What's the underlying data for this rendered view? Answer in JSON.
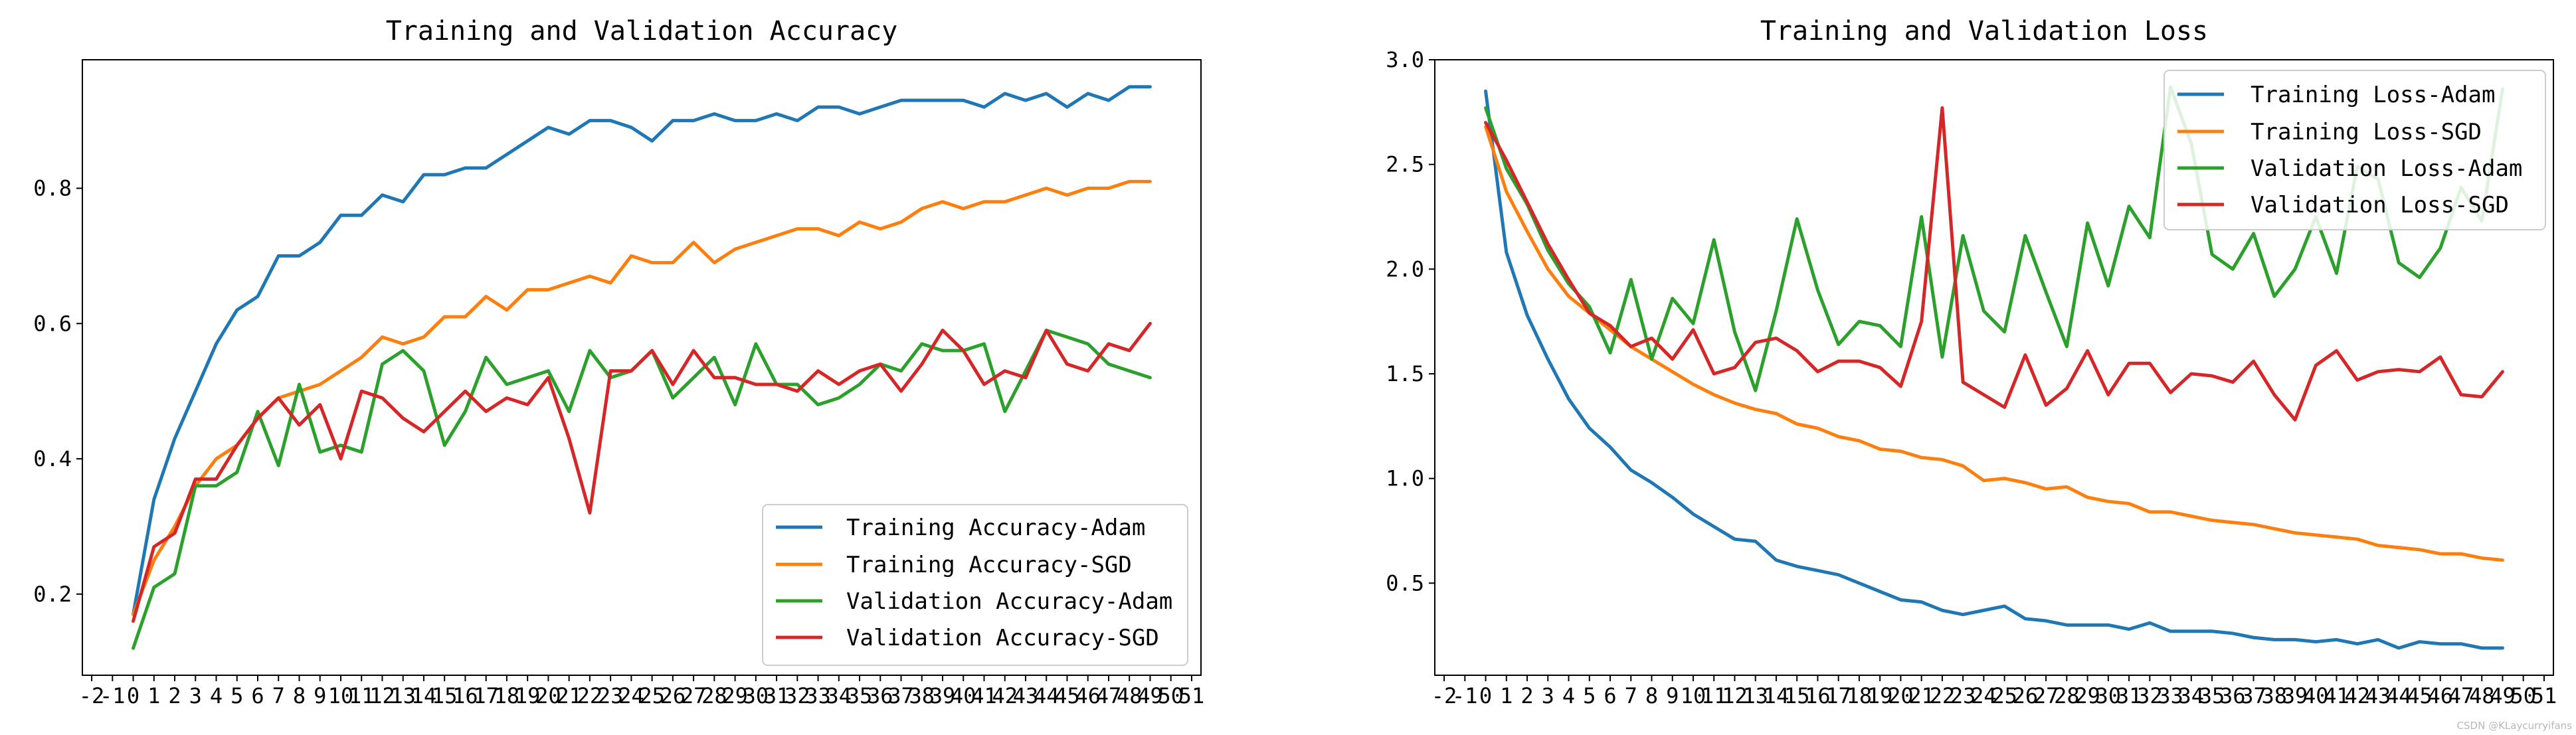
{
  "chart_data": [
    {
      "type": "line",
      "title": "Training and Validation Accuracy",
      "xlabel": "",
      "ylabel": "",
      "xlim": [
        -2.45,
        51.45
      ],
      "ylim": [
        0.08,
        0.99
      ],
      "x_ticks": [
        -2,
        -1,
        0,
        1,
        2,
        3,
        4,
        5,
        6,
        7,
        8,
        9,
        10,
        11,
        12,
        13,
        14,
        15,
        16,
        17,
        18,
        19,
        20,
        21,
        22,
        23,
        24,
        25,
        26,
        27,
        28,
        29,
        30,
        31,
        32,
        33,
        34,
        35,
        36,
        37,
        38,
        39,
        40,
        41,
        42,
        43,
        44,
        45,
        46,
        47,
        48,
        49,
        50,
        51
      ],
      "y_ticks": [
        0.2,
        0.4,
        0.6,
        0.8
      ],
      "y_tick_labels": [
        "0.2",
        "0.4",
        "0.6",
        "0.8"
      ],
      "legend_position": "lower-right",
      "series": [
        {
          "name": "Training Accuracy-Adam",
          "color": "#1f77b4",
          "values": [
            0.17,
            0.34,
            0.43,
            0.5,
            0.57,
            0.62,
            0.64,
            0.7,
            0.7,
            0.72,
            0.76,
            0.76,
            0.79,
            0.78,
            0.82,
            0.82,
            0.83,
            0.83,
            0.85,
            0.87,
            0.89,
            0.88,
            0.9,
            0.9,
            0.89,
            0.87,
            0.9,
            0.9,
            0.91,
            0.9,
            0.9,
            0.91,
            0.9,
            0.92,
            0.92,
            0.91,
            0.92,
            0.93,
            0.93,
            0.93,
            0.93,
            0.92,
            0.94,
            0.93,
            0.94,
            0.92,
            0.94,
            0.93,
            0.95,
            0.95
          ]
        },
        {
          "name": "Training Accuracy-SGD",
          "color": "#ff7f0e",
          "values": [
            0.17,
            0.25,
            0.3,
            0.36,
            0.4,
            0.42,
            0.46,
            0.49,
            0.5,
            0.51,
            0.53,
            0.55,
            0.58,
            0.57,
            0.58,
            0.61,
            0.61,
            0.64,
            0.62,
            0.65,
            0.65,
            0.66,
            0.67,
            0.66,
            0.7,
            0.69,
            0.69,
            0.72,
            0.69,
            0.71,
            0.72,
            0.73,
            0.74,
            0.74,
            0.73,
            0.75,
            0.74,
            0.75,
            0.77,
            0.78,
            0.77,
            0.78,
            0.78,
            0.79,
            0.8,
            0.79,
            0.8,
            0.8,
            0.81,
            0.81
          ]
        },
        {
          "name": "Validation Accuracy-Adam",
          "color": "#2ca02c",
          "values": [
            0.12,
            0.21,
            0.23,
            0.36,
            0.36,
            0.38,
            0.47,
            0.39,
            0.51,
            0.41,
            0.42,
            0.41,
            0.54,
            0.56,
            0.53,
            0.42,
            0.47,
            0.55,
            0.51,
            0.52,
            0.53,
            0.47,
            0.56,
            0.52,
            0.53,
            0.56,
            0.49,
            0.52,
            0.55,
            0.48,
            0.57,
            0.51,
            0.51,
            0.48,
            0.49,
            0.51,
            0.54,
            0.53,
            0.57,
            0.56,
            0.56,
            0.57,
            0.47,
            0.53,
            0.59,
            0.58,
            0.57,
            0.54,
            0.53,
            0.52
          ]
        },
        {
          "name": "Validation Accuracy-SGD",
          "color": "#d62728",
          "values": [
            0.16,
            0.27,
            0.29,
            0.37,
            0.37,
            0.42,
            0.46,
            0.49,
            0.45,
            0.48,
            0.4,
            0.5,
            0.49,
            0.46,
            0.44,
            0.47,
            0.5,
            0.47,
            0.49,
            0.48,
            0.52,
            0.43,
            0.32,
            0.53,
            0.53,
            0.56,
            0.51,
            0.56,
            0.52,
            0.52,
            0.51,
            0.51,
            0.5,
            0.53,
            0.51,
            0.53,
            0.54,
            0.5,
            0.54,
            0.59,
            0.56,
            0.51,
            0.53,
            0.52,
            0.59,
            0.54,
            0.53,
            0.57,
            0.56,
            0.6
          ]
        }
      ]
    },
    {
      "type": "line",
      "title": "Training and Validation Loss",
      "xlabel": "",
      "ylabel": "",
      "xlim": [
        -2.45,
        51.45
      ],
      "ylim": [
        0.06,
        3.0
      ],
      "x_ticks": [
        -2,
        -1,
        0,
        1,
        2,
        3,
        4,
        5,
        6,
        7,
        8,
        9,
        10,
        11,
        12,
        13,
        14,
        15,
        16,
        17,
        18,
        19,
        20,
        21,
        22,
        23,
        24,
        25,
        26,
        27,
        28,
        29,
        30,
        31,
        32,
        33,
        34,
        35,
        36,
        37,
        38,
        39,
        40,
        41,
        42,
        43,
        44,
        45,
        46,
        47,
        48,
        49,
        50,
        51
      ],
      "y_ticks": [
        0.5,
        1.0,
        1.5,
        2.0,
        2.5,
        3.0
      ],
      "y_tick_labels": [
        "0.5",
        "1.0",
        "1.5",
        "2.0",
        "2.5",
        "3.0"
      ],
      "legend_position": "upper-right",
      "series": [
        {
          "name": "Training Loss-Adam",
          "color": "#1f77b4",
          "values": [
            2.85,
            2.08,
            1.78,
            1.57,
            1.38,
            1.24,
            1.15,
            1.04,
            0.98,
            0.91,
            0.83,
            0.77,
            0.71,
            0.7,
            0.61,
            0.58,
            0.56,
            0.54,
            0.5,
            0.46,
            0.42,
            0.41,
            0.37,
            0.35,
            0.37,
            0.39,
            0.33,
            0.32,
            0.3,
            0.3,
            0.3,
            0.28,
            0.31,
            0.27,
            0.27,
            0.27,
            0.26,
            0.24,
            0.23,
            0.23,
            0.22,
            0.23,
            0.21,
            0.23,
            0.19,
            0.22,
            0.21,
            0.21,
            0.19,
            0.19
          ]
        },
        {
          "name": "Training Loss-SGD",
          "color": "#ff7f0e",
          "values": [
            2.68,
            2.37,
            2.18,
            2.0,
            1.87,
            1.79,
            1.71,
            1.63,
            1.57,
            1.51,
            1.45,
            1.4,
            1.36,
            1.33,
            1.31,
            1.26,
            1.24,
            1.2,
            1.18,
            1.14,
            1.13,
            1.1,
            1.09,
            1.06,
            0.99,
            1.0,
            0.98,
            0.95,
            0.96,
            0.91,
            0.89,
            0.88,
            0.84,
            0.84,
            0.82,
            0.8,
            0.79,
            0.78,
            0.76,
            0.74,
            0.73,
            0.72,
            0.71,
            0.68,
            0.67,
            0.66,
            0.64,
            0.64,
            0.62,
            0.61
          ]
        },
        {
          "name": "Validation Loss-Adam",
          "color": "#2ca02c",
          "values": [
            2.77,
            2.48,
            2.31,
            2.09,
            1.93,
            1.82,
            1.6,
            1.95,
            1.57,
            1.86,
            1.74,
            2.14,
            1.7,
            1.42,
            1.8,
            2.24,
            1.9,
            1.64,
            1.75,
            1.73,
            1.63,
            2.25,
            1.58,
            2.16,
            1.8,
            1.7,
            2.16,
            1.89,
            1.63,
            2.22,
            1.92,
            2.3,
            2.15,
            2.87,
            2.6,
            2.07,
            2.0,
            2.17,
            1.87,
            2.0,
            2.25,
            1.98,
            2.49,
            2.43,
            2.03,
            1.96,
            2.1,
            2.39,
            2.23,
            2.86
          ]
        },
        {
          "name": "Validation Loss-SGD",
          "color": "#d62728",
          "values": [
            2.7,
            2.52,
            2.32,
            2.12,
            1.95,
            1.79,
            1.73,
            1.63,
            1.67,
            1.57,
            1.71,
            1.5,
            1.53,
            1.65,
            1.67,
            1.61,
            1.51,
            1.56,
            1.56,
            1.53,
            1.44,
            1.75,
            2.77,
            1.46,
            1.4,
            1.34,
            1.59,
            1.35,
            1.43,
            1.61,
            1.4,
            1.55,
            1.55,
            1.41,
            1.5,
            1.49,
            1.46,
            1.56,
            1.4,
            1.28,
            1.54,
            1.61,
            1.47,
            1.51,
            1.52,
            1.51,
            1.58,
            1.4,
            1.39,
            1.51
          ]
        }
      ]
    }
  ],
  "watermark": "CSDN @KLaycurryifans"
}
